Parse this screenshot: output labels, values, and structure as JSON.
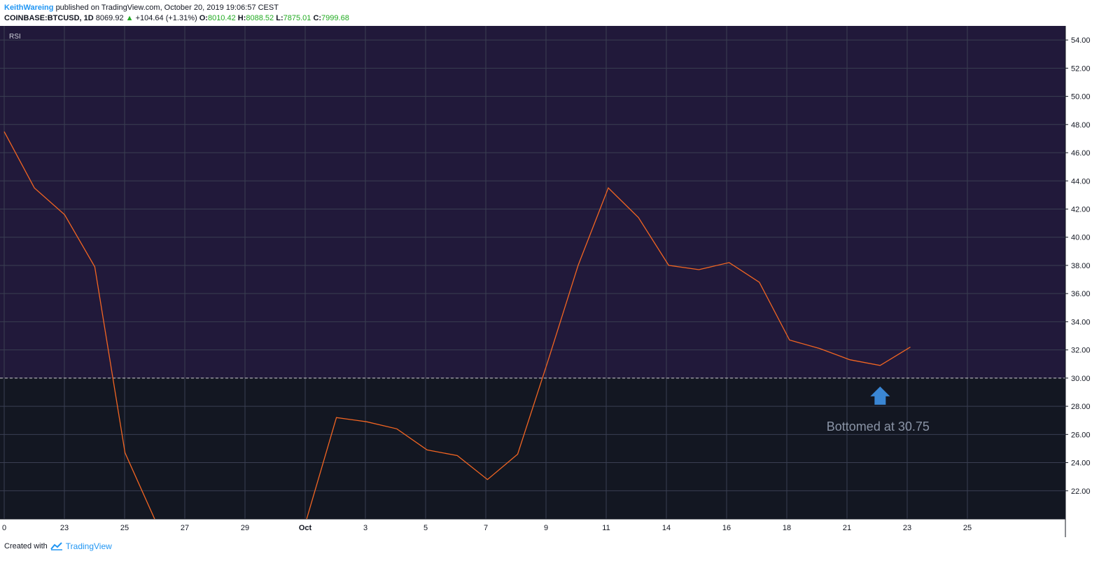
{
  "header": {
    "author": "KeithWareing",
    "published_text": "published on TradingView.com, October 20, 2019 19:06:57 CEST",
    "symbol": "COINBASE:BTCUSD, 1D",
    "price": "8069.92",
    "change_arrow": "▲",
    "change": "+104.64 (+1.31%)",
    "open_label": "O:",
    "open": "8010.42",
    "high_label": "H:",
    "high": "8088.52",
    "low_label": "L:",
    "low": "7875.01",
    "close_label": "C:",
    "close": "7999.68"
  },
  "footer": {
    "created_with": "Created with",
    "brand": "TradingView"
  },
  "colors": {
    "upper_zone": "#21193a",
    "lower_zone": "#131722",
    "line": "#f26522",
    "grid": "#3a3f52",
    "arrow": "#3a86d4",
    "annotation": "#8a94a6",
    "green": "#22ab22"
  },
  "chart_data": {
    "type": "line",
    "title": "RSI",
    "xlabel": "",
    "ylabel": "",
    "ylim": [
      20.0,
      55.0
    ],
    "threshold": 30.0,
    "grid": true,
    "x_ticks": [
      "0",
      "23",
      "25",
      "27",
      "29",
      "Oct",
      "3",
      "5",
      "7",
      "9",
      "11",
      "14",
      "16",
      "18",
      "21",
      "23",
      "25"
    ],
    "y_ticks": [
      "54.00",
      "52.00",
      "50.00",
      "48.00",
      "46.00",
      "44.00",
      "42.00",
      "40.00",
      "38.00",
      "36.00",
      "34.00",
      "32.00",
      "30.00",
      "28.00",
      "26.00",
      "24.00",
      "22.00"
    ],
    "series": [
      {
        "values": [
          [
            0,
            47.5
          ],
          [
            1,
            43.5
          ],
          [
            2,
            41.6
          ],
          [
            3,
            37.9
          ],
          [
            4,
            24.7
          ],
          [
            5,
            19.9
          ],
          [
            10,
            19.9
          ],
          [
            11,
            27.2
          ],
          [
            12,
            26.9
          ],
          [
            13,
            26.4
          ],
          [
            14,
            24.9
          ],
          [
            15,
            24.5
          ],
          [
            16,
            22.8
          ],
          [
            17,
            24.6
          ],
          [
            18,
            31.2
          ],
          [
            19,
            38.0
          ],
          [
            20,
            43.5
          ],
          [
            21,
            41.4
          ],
          [
            22,
            38.0
          ],
          [
            23,
            37.7
          ],
          [
            24,
            38.2
          ],
          [
            25,
            36.8
          ],
          [
            26,
            32.7
          ],
          [
            27,
            32.1
          ],
          [
            28,
            31.3
          ],
          [
            29,
            30.9
          ],
          [
            30,
            32.2
          ]
        ]
      }
    ],
    "annotation": {
      "text": "Bottomed at 30.75",
      "x": 29,
      "value": 30.75
    }
  }
}
